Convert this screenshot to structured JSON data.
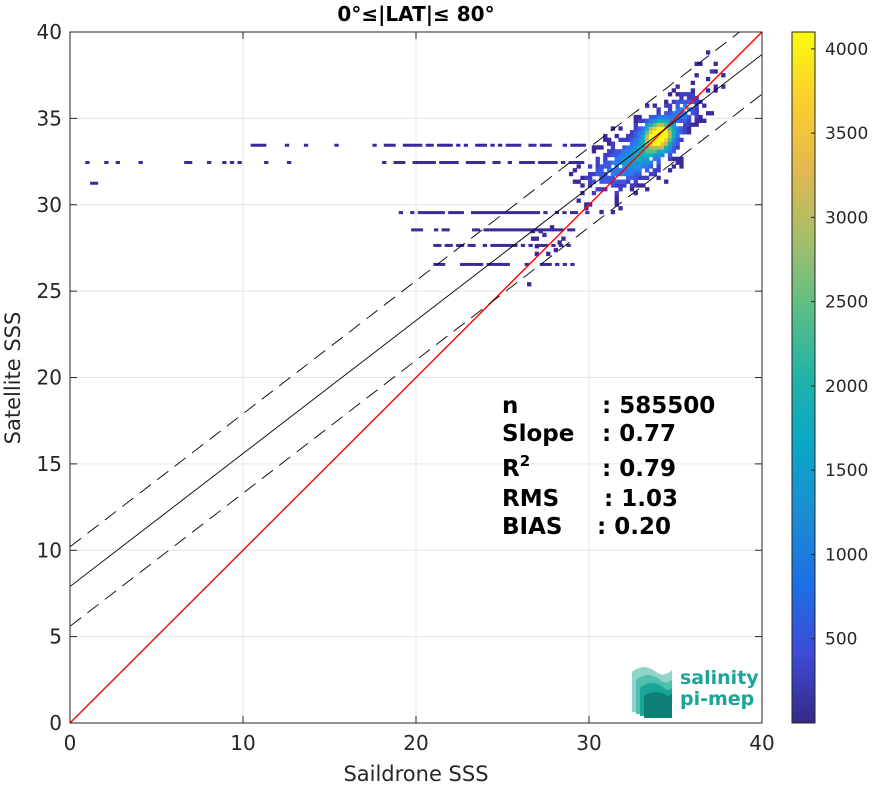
{
  "chart_data": {
    "type": "heatmap",
    "title": "0°≤|LAT|≤ 80°",
    "xlabel": "Saildrone SSS",
    "ylabel": "Satellite SSS",
    "xlim": [
      0,
      40
    ],
    "ylim": [
      0,
      40
    ],
    "x_ticks": [
      "0",
      "10",
      "20",
      "30",
      "40"
    ],
    "y_ticks": [
      "0",
      "5",
      "10",
      "15",
      "20",
      "25",
      "30",
      "35",
      "40"
    ],
    "grid": true,
    "colorbar": {
      "range": [
        0,
        4100
      ],
      "ticks": [
        "500",
        "1000",
        "1500",
        "2000",
        "2500",
        "3000",
        "3500",
        "4000"
      ],
      "colormap": "parula"
    },
    "lines": [
      {
        "kind": "identity",
        "color": "#ff0000",
        "x": [
          0,
          40
        ],
        "y": [
          0,
          40
        ]
      },
      {
        "kind": "regression",
        "color": "#000000",
        "intercept": 7.9,
        "slope": 0.77
      },
      {
        "kind": "regression-plus-2rms",
        "color": "#000000",
        "intercept": 10.2,
        "slope": 0.77
      },
      {
        "kind": "regression-minus-2rms",
        "color": "#000000",
        "intercept": 5.6,
        "slope": 0.77
      }
    ],
    "stats": [
      {
        "label": "n",
        "value": ": 585500"
      },
      {
        "label": "Slope",
        "value": ": 0.77"
      },
      {
        "label": "R",
        "superscript": "2",
        "value": ": 0.79"
      },
      {
        "label": "RMS",
        "value": ": 1.03"
      },
      {
        "label": "BIAS",
        "value": ": 0.20"
      }
    ],
    "density_clusters": [
      {
        "x": 30.5,
        "y": 31.2,
        "sx": 1.0,
        "sy": 1.0,
        "w": 0.35
      },
      {
        "x": 32.5,
        "y": 32.5,
        "sx": 1.2,
        "sy": 1.0,
        "w": 0.6
      },
      {
        "x": 34.0,
        "y": 34.0,
        "sx": 0.8,
        "sy": 0.8,
        "w": 1.0
      },
      {
        "x": 35.5,
        "y": 35.5,
        "sx": 0.7,
        "sy": 0.7,
        "w": 0.5
      },
      {
        "x": 37.0,
        "y": 37.5,
        "sx": 0.6,
        "sy": 0.8,
        "w": 0.25
      },
      {
        "x": 26.5,
        "y": 25.0,
        "sx": 0.3,
        "sy": 1.0,
        "w": 0.15
      },
      {
        "x": 27.5,
        "y": 28.0,
        "sx": 0.8,
        "sy": 0.6,
        "w": 0.2
      }
    ],
    "sparse_rows": [
      {
        "y": 32.4,
        "x0": 0.0,
        "x1": 30.0
      },
      {
        "y": 33.4,
        "x0": 10.0,
        "x1": 30.0
      },
      {
        "y": 31.2,
        "x0": 0.5,
        "x1": 2.0
      },
      {
        "y": 29.5,
        "x0": 19.0,
        "x1": 30.0
      },
      {
        "y": 28.5,
        "x0": 19.5,
        "x1": 29.0
      },
      {
        "y": 27.6,
        "x0": 21.0,
        "x1": 29.0
      },
      {
        "y": 26.5,
        "x0": 21.0,
        "x1": 29.0
      }
    ]
  },
  "logo": {
    "line1": "salinity",
    "line2": "pi-mep"
  },
  "colors": {
    "axis": "#262626",
    "grid": "#e6e6e6",
    "identity_line": "#ff0000",
    "regression_line": "#000000",
    "logo_teal": "#1aa59a"
  }
}
